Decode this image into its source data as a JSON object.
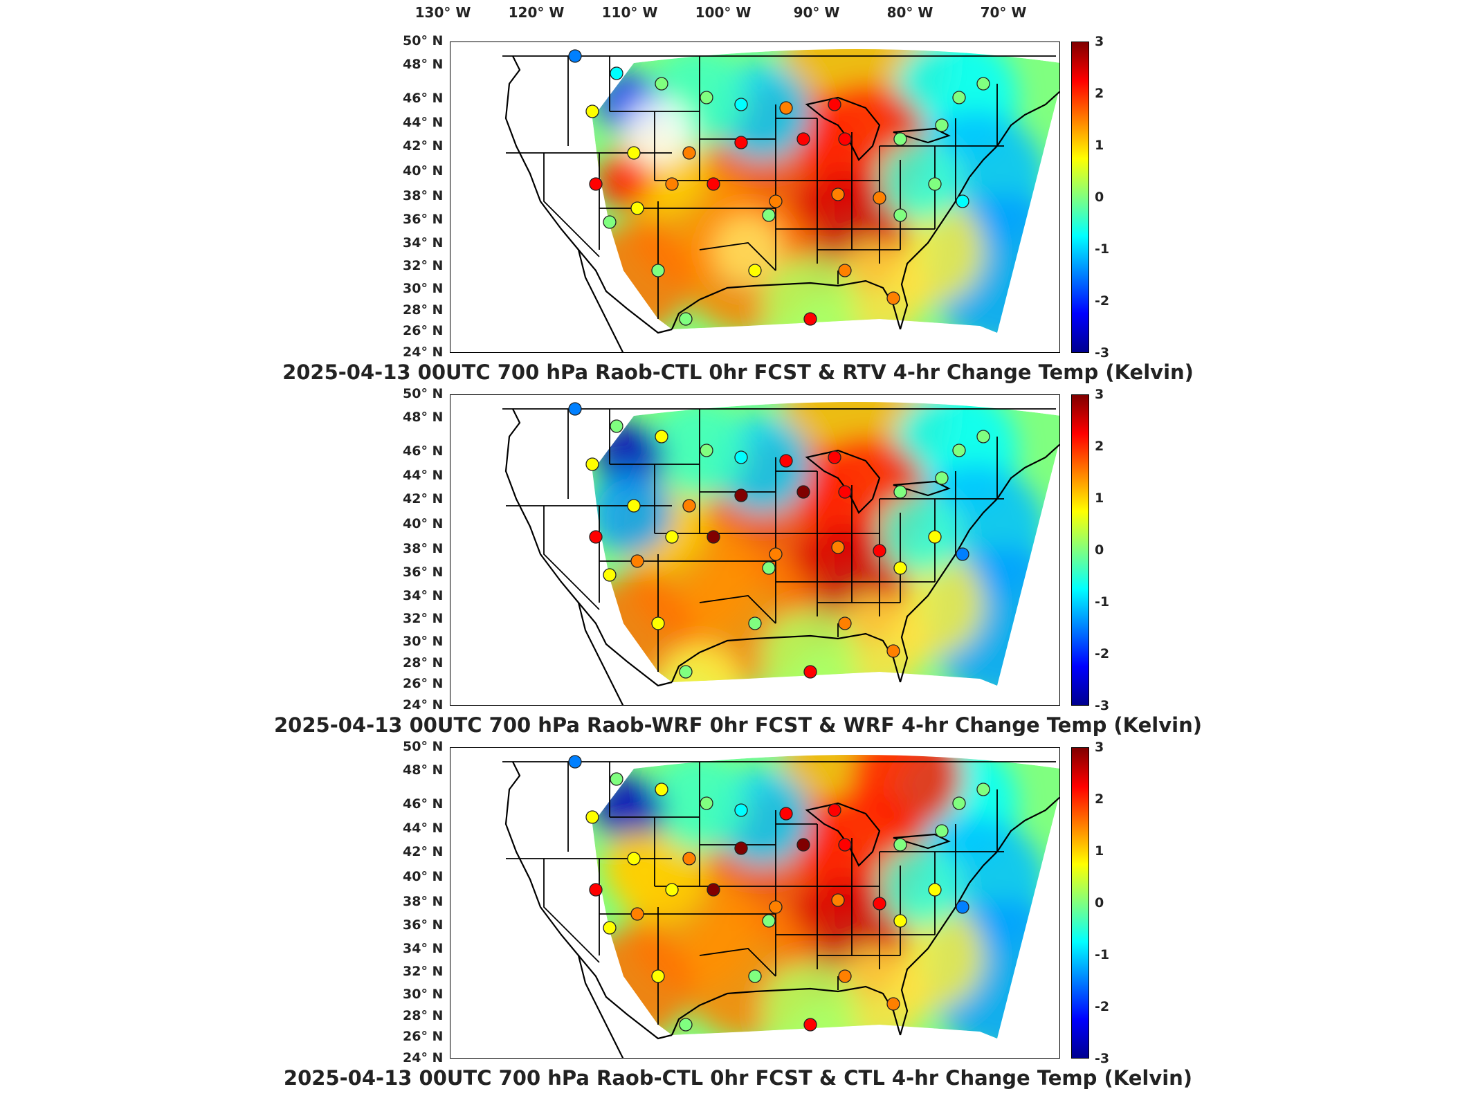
{
  "longitude_labels": [
    "130° W",
    "120° W",
    "110° W",
    "100° W",
    "90° W",
    "80° W",
    "70° W"
  ],
  "latitude_labels": [
    "50° N",
    "48° N",
    "46° N",
    "44° N",
    "42° N",
    "40° N",
    "38° N",
    "36° N",
    "34° N",
    "32° N",
    "30° N",
    "28° N",
    "26° N",
    "24° N"
  ],
  "colorbar": {
    "ticks": [
      "3",
      "2",
      "1",
      "0",
      "-1",
      "-2",
      "-3"
    ],
    "range": [
      -3,
      3
    ],
    "colors": [
      "#00008f",
      "#0000ff",
      "#0080ff",
      "#00ffff",
      "#80ff80",
      "#ffff00",
      "#ff8000",
      "#ff0000",
      "#800000"
    ]
  },
  "panels": [
    {
      "title": "2025-04-13 00UTC 700 hPa Raob-CTL 0hr FCST & RTV 4-hr Change Temp (Kelvin)"
    },
    {
      "title": "2025-04-13 00UTC 700 hPa Raob-WRF 0hr FCST & WRF 4-hr Change Temp (Kelvin)"
    },
    {
      "title": "2025-04-13 00UTC 700 hPa Raob-CTL 0hr FCST & CTL 4-hr Change Temp (Kelvin)"
    }
  ]
}
